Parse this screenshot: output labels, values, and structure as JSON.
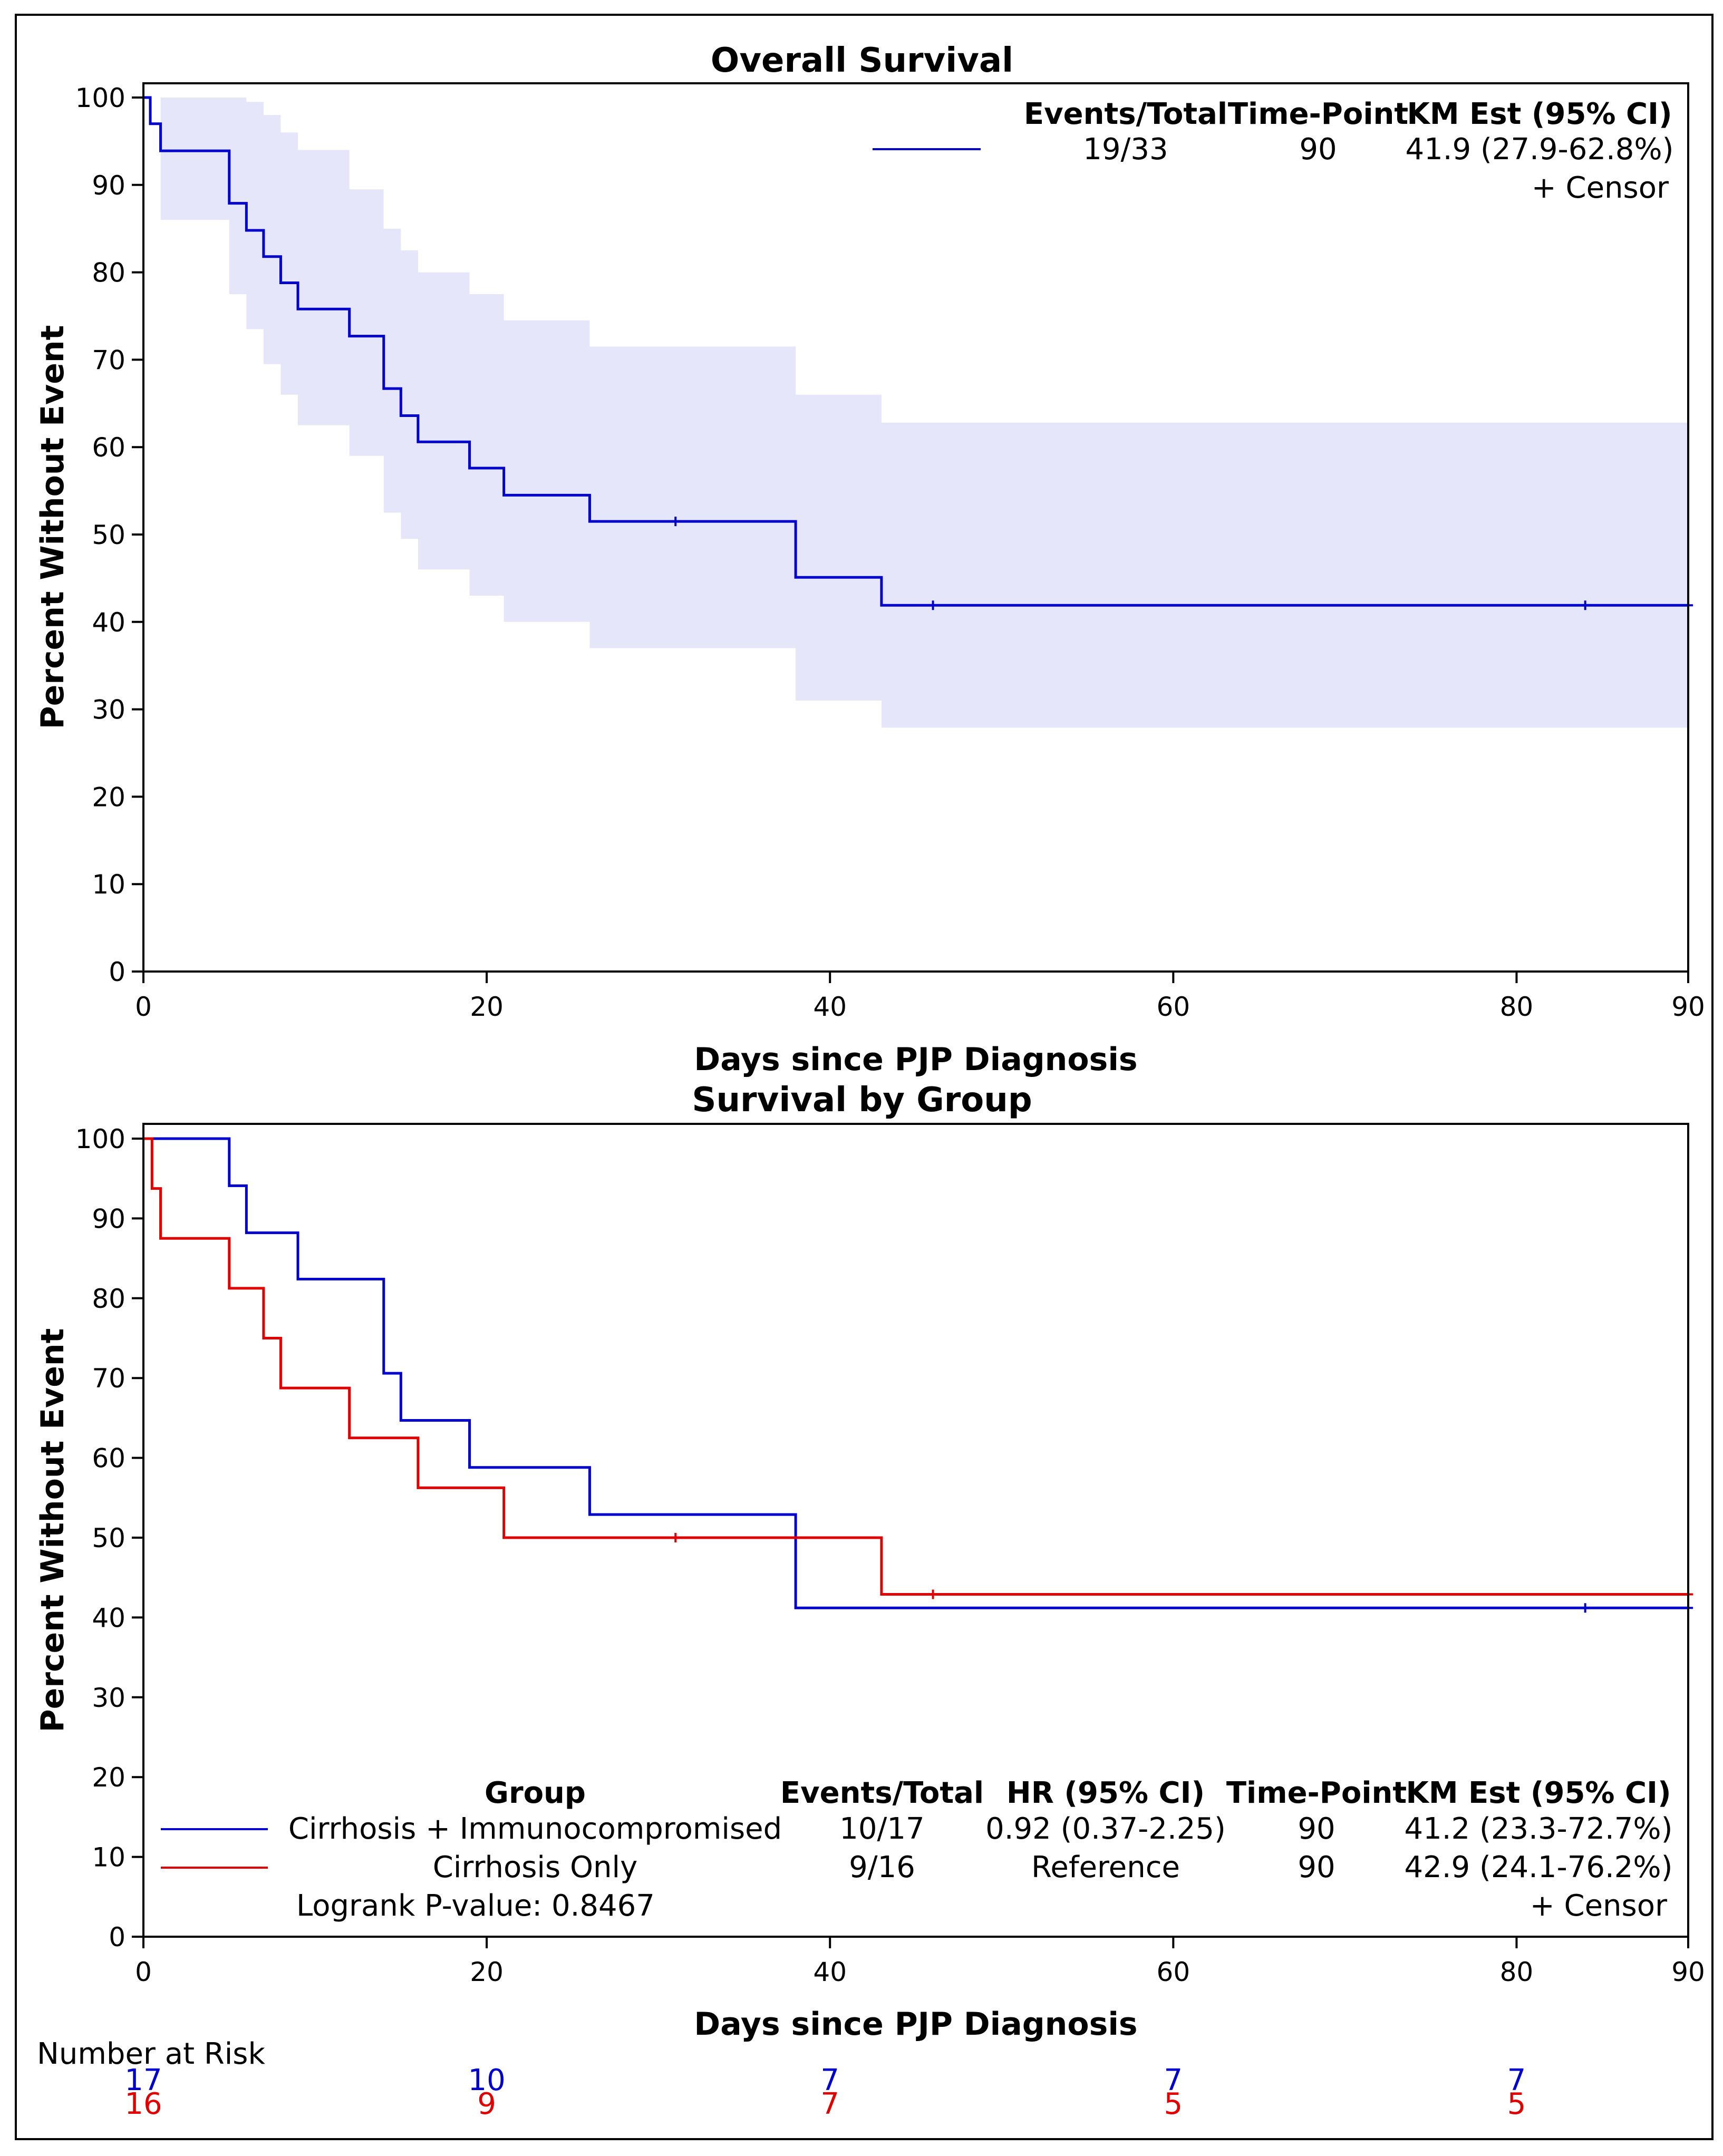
{
  "chart_data": [
    {
      "type": "line",
      "subtype": "kaplan-meier",
      "title": "Overall Survival",
      "xlabel": "Days since PJP Diagnosis",
      "ylabel": "Percent Without Event",
      "xlim": [
        0,
        90
      ],
      "ylim": [
        0,
        100
      ],
      "xticks": [
        0,
        20,
        40,
        60,
        80,
        90
      ],
      "yticks": [
        0,
        10,
        20,
        30,
        40,
        50,
        60,
        70,
        80,
        90,
        100
      ],
      "series": [
        {
          "name": "Overall",
          "color": "#0000cc",
          "steps": [
            [
              0,
              100
            ],
            [
              0.4,
              97
            ],
            [
              1,
              93.9
            ],
            [
              5,
              87.9
            ],
            [
              6,
              84.8
            ],
            [
              7,
              81.8
            ],
            [
              8,
              78.8
            ],
            [
              9,
              75.8
            ],
            [
              12,
              72.7
            ],
            [
              14,
              66.7
            ],
            [
              15,
              63.6
            ],
            [
              16,
              60.6
            ],
            [
              19,
              57.6
            ],
            [
              21,
              54.5
            ],
            [
              26,
              51.5
            ],
            [
              38,
              45.1
            ],
            [
              43,
              41.9
            ]
          ],
          "end": 90,
          "censors": [
            31,
            46,
            84,
            90
          ],
          "ci_steps": [
            [
              0,
              100,
              100
            ],
            [
              1,
              100,
              86
            ],
            [
              5,
              100,
              77.5
            ],
            [
              6,
              99.5,
              73.5
            ],
            [
              7,
              98,
              69.5
            ],
            [
              8,
              96,
              66
            ],
            [
              9,
              94,
              62.5
            ],
            [
              12,
              89.5,
              59
            ],
            [
              14,
              85,
              52.5
            ],
            [
              15,
              82.5,
              49.5
            ],
            [
              16,
              80,
              46
            ],
            [
              19,
              77.5,
              43
            ],
            [
              21,
              74.5,
              40
            ],
            [
              26,
              71.5,
              37
            ],
            [
              38,
              66,
              31
            ],
            [
              43,
              62.8,
              27.9
            ]
          ]
        }
      ],
      "legend_table": {
        "headers": [
          "Events/Total",
          "Time-Point",
          "KM Est (95% CI)"
        ],
        "row": [
          "19/33",
          "90",
          "41.9 (27.9-62.8%)"
        ],
        "censor_label": "+ Censor"
      }
    },
    {
      "type": "line",
      "subtype": "kaplan-meier",
      "title": "Survival by Group",
      "xlabel": "Days since PJP Diagnosis",
      "ylabel": "Percent Without Event",
      "xlim": [
        0,
        90
      ],
      "ylim": [
        0,
        100
      ],
      "xticks": [
        0,
        20,
        40,
        60,
        80,
        90
      ],
      "yticks": [
        0,
        10,
        20,
        30,
        40,
        50,
        60,
        70,
        80,
        90,
        100
      ],
      "series": [
        {
          "name": "Cirrhosis + Immunocompromised",
          "color": "#0000cc",
          "steps": [
            [
              0,
              100
            ],
            [
              5,
              94.1
            ],
            [
              6,
              88.2
            ],
            [
              9,
              82.4
            ],
            [
              14,
              70.6
            ],
            [
              15,
              64.7
            ],
            [
              19,
              58.8
            ],
            [
              26,
              52.9
            ],
            [
              38,
              41.2
            ]
          ],
          "end": 90,
          "censors": [
            84,
            90
          ]
        },
        {
          "name": "Cirrhosis Only",
          "color": "#e00000",
          "steps": [
            [
              0,
              100
            ],
            [
              0.5,
              93.75
            ],
            [
              1,
              87.5
            ],
            [
              5,
              81.25
            ],
            [
              7,
              75
            ],
            [
              8,
              68.75
            ],
            [
              12,
              62.5
            ],
            [
              16,
              56.25
            ],
            [
              21,
              50
            ],
            [
              43,
              42.9
            ]
          ],
          "end": 90,
          "censors": [
            31,
            46,
            90
          ]
        }
      ],
      "legend_table": {
        "headers": [
          "Group",
          "Events/Total",
          "HR (95% CI)",
          "Time-Point",
          "KM Est (95% CI)"
        ],
        "rows": [
          [
            "Cirrhosis + Immunocompromised",
            "10/17",
            "0.92 (0.37-2.25)",
            "90",
            "41.2 (23.3-72.7%)"
          ],
          [
            "Cirrhosis Only",
            "9/16",
            "Reference",
            "90",
            "42.9 (24.1-76.2%)"
          ]
        ],
        "logrank": "Logrank P-value: 0.8467",
        "censor_label": "+ Censor"
      },
      "risk_table": {
        "label": "Number at Risk",
        "times": [
          0,
          20,
          40,
          60,
          80
        ],
        "rows": [
          {
            "color": "#0000cc",
            "values": [
              "17",
              "10",
              "7",
              "7",
              "7"
            ]
          },
          {
            "color": "#e00000",
            "values": [
              "16",
              "9",
              "7",
              "5",
              "5"
            ]
          }
        ]
      }
    }
  ]
}
